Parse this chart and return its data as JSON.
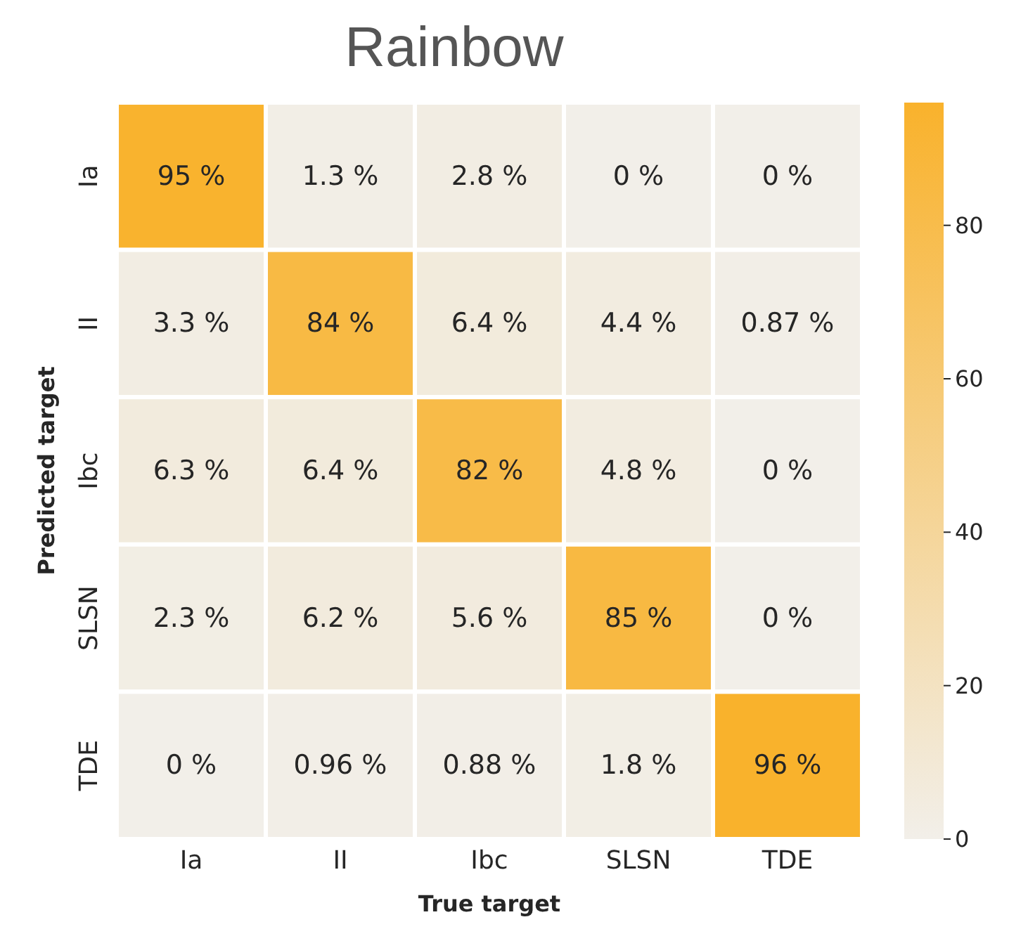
{
  "chart_data": {
    "type": "heatmap",
    "title": "Rainbow",
    "xlabel": "True target",
    "ylabel": "Predicted target",
    "categories": [
      "Ia",
      "II",
      "Ibc",
      "SLSN",
      "TDE"
    ],
    "y_categories": [
      "Ia",
      "II",
      "Ibc",
      "SLSN",
      "TDE"
    ],
    "cells": [
      [
        95,
        1.3,
        2.8,
        0,
        0
      ],
      [
        3.3,
        84,
        6.4,
        4.4,
        0.87
      ],
      [
        6.3,
        6.4,
        82,
        4.8,
        0
      ],
      [
        2.3,
        6.2,
        5.6,
        85,
        0
      ],
      [
        0,
        0.96,
        0.88,
        1.8,
        96
      ]
    ],
    "cell_labels": [
      [
        "95 %",
        "1.3 %",
        "2.8 %",
        "0 %",
        "0 %"
      ],
      [
        "3.3 %",
        "84 %",
        "6.4 %",
        "4.4 %",
        "0.87 %"
      ],
      [
        "6.3 %",
        "6.4 %",
        "82 %",
        "4.8 %",
        "0 %"
      ],
      [
        "2.3 %",
        "6.2 %",
        "5.6 %",
        "85 %",
        "0 %"
      ],
      [
        "0 %",
        "0.96 %",
        "0.88 %",
        "1.8 %",
        "96 %"
      ]
    ],
    "clim": [
      0,
      96
    ],
    "cticks": [
      0,
      20,
      40,
      60,
      80
    ]
  }
}
